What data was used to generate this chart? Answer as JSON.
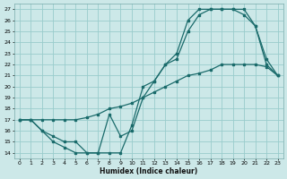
{
  "xlabel": "Humidex (Indice chaleur)",
  "bg_color": "#cce8e8",
  "grid_color": "#99cccc",
  "line_color": "#1a6b6b",
  "xlim": [
    -0.5,
    23.5
  ],
  "ylim": [
    13.5,
    27.5
  ],
  "xticks": [
    0,
    1,
    2,
    3,
    4,
    5,
    6,
    7,
    8,
    9,
    10,
    11,
    12,
    13,
    14,
    15,
    16,
    17,
    18,
    19,
    20,
    21,
    22,
    23
  ],
  "yticks": [
    14,
    15,
    16,
    17,
    18,
    19,
    20,
    21,
    22,
    23,
    24,
    25,
    26,
    27
  ],
  "line1_x": [
    0,
    1,
    2,
    3,
    4,
    5,
    6,
    7,
    8,
    9,
    10,
    11,
    12,
    13,
    14,
    15,
    16,
    17,
    18,
    19,
    20,
    21,
    22,
    23
  ],
  "line1_y": [
    17,
    17,
    16,
    15,
    14.5,
    14,
    14,
    14,
    17.5,
    15.5,
    16,
    19,
    20.5,
    22,
    22.5,
    25,
    26.5,
    27,
    27,
    27,
    27,
    25.5,
    22.5,
    21
  ],
  "line2_x": [
    0,
    1,
    2,
    3,
    4,
    5,
    6,
    7,
    8,
    9,
    10,
    11,
    12,
    13,
    14,
    15,
    16,
    17,
    18,
    19,
    20,
    21,
    22,
    23
  ],
  "line2_y": [
    17,
    17,
    16,
    15.5,
    15,
    15,
    14,
    14,
    14,
    14,
    16.5,
    20,
    20.5,
    22,
    23,
    26,
    27,
    27,
    27,
    27,
    26.5,
    25.5,
    22,
    21
  ],
  "line3_x": [
    0,
    1,
    2,
    3,
    4,
    5,
    6,
    7,
    8,
    9,
    10,
    11,
    12,
    13,
    14,
    15,
    16,
    17,
    18,
    19,
    20,
    21,
    22,
    23
  ],
  "line3_y": [
    17,
    17,
    17,
    17,
    17,
    17,
    17.2,
    17.5,
    18,
    18.2,
    18.5,
    19,
    19.5,
    20,
    20.5,
    21,
    21.2,
    21.5,
    22,
    22,
    22,
    22,
    21.8,
    21
  ]
}
